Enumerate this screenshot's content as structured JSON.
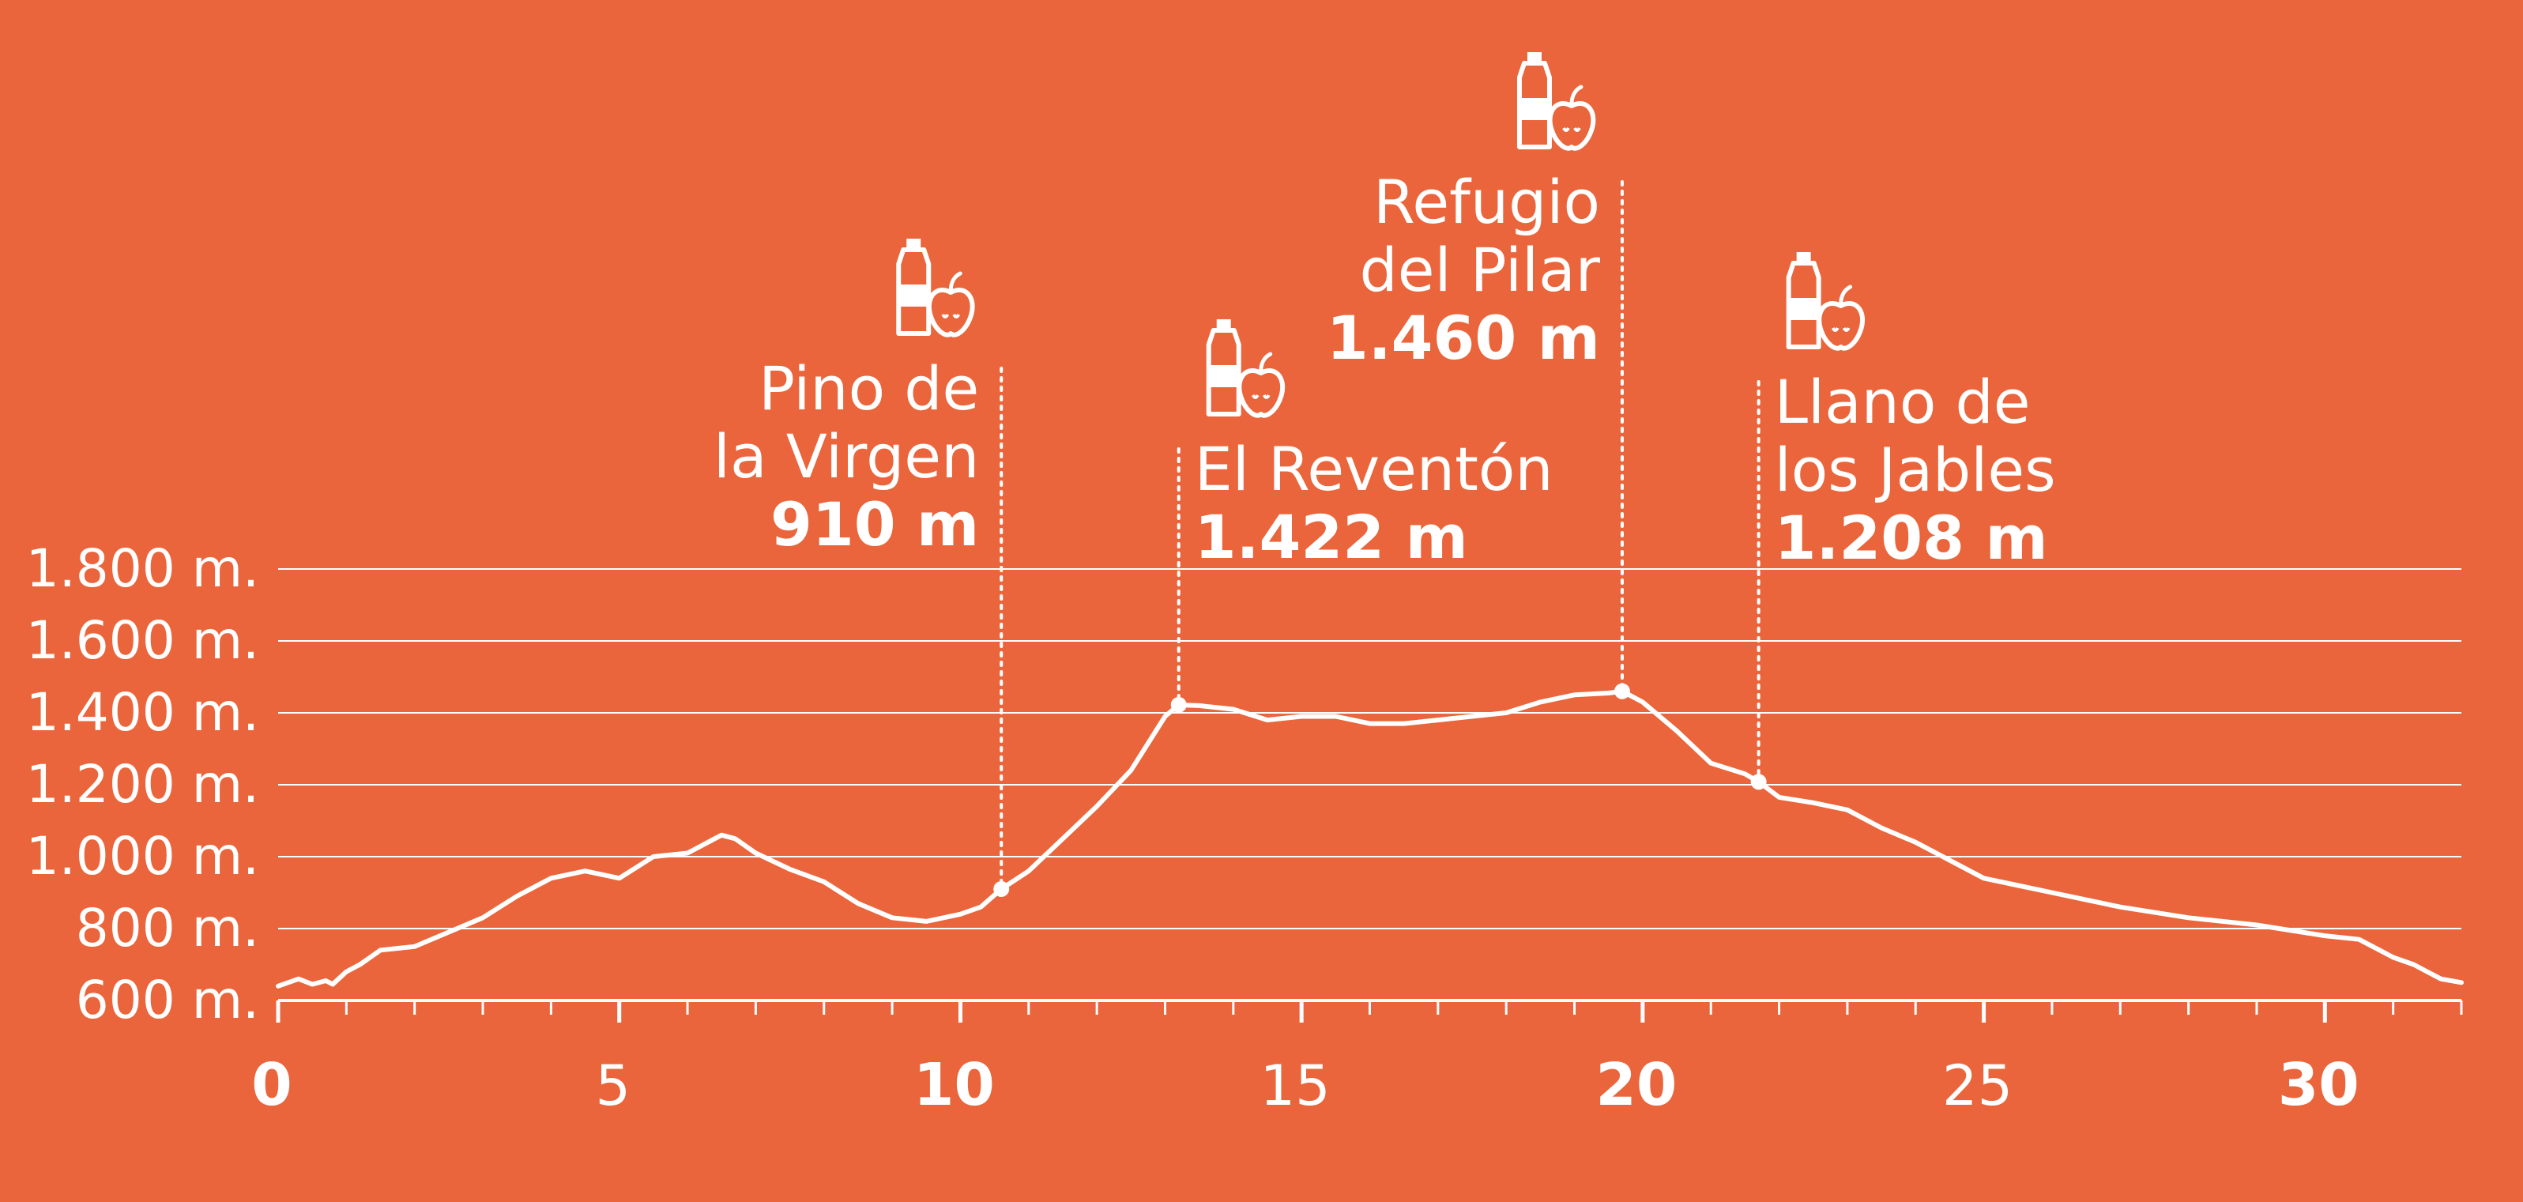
{
  "colors": {
    "background": "#EA653B",
    "foreground": "#FFFFFF"
  },
  "chart_data": {
    "type": "line",
    "title": "",
    "xlabel": "",
    "ylabel": "",
    "xlim": [
      0,
      32
    ],
    "ylim": [
      600,
      1800
    ],
    "grid": true,
    "y_ticks": [
      {
        "value": 600,
        "label": "600 m."
      },
      {
        "value": 800,
        "label": "800 m."
      },
      {
        "value": 1000,
        "label": "1.000 m."
      },
      {
        "value": 1200,
        "label": "1.200 m."
      },
      {
        "value": 1400,
        "label": "1.400 m."
      },
      {
        "value": 1600,
        "label": "1.600 m."
      },
      {
        "value": 1800,
        "label": "1.800 m."
      }
    ],
    "x_ticks": [
      {
        "value": 0,
        "label": "0",
        "major": true
      },
      {
        "value": 5,
        "label": "5",
        "major": false
      },
      {
        "value": 10,
        "label": "10",
        "major": true
      },
      {
        "value": 15,
        "label": "15",
        "major": false
      },
      {
        "value": 20,
        "label": "20",
        "major": true
      },
      {
        "value": 25,
        "label": "25",
        "major": false
      },
      {
        "value": 30,
        "label": "30",
        "major": true
      }
    ],
    "x_minor_step": 1,
    "series": [
      {
        "x": [
          0,
          0.3,
          0.5,
          0.7,
          0.8,
          1.0,
          1.2,
          1.5,
          2.0,
          2.5,
          3.0,
          3.5,
          4.0,
          4.5,
          5.0,
          5.5,
          6.0,
          6.3,
          6.5,
          6.7,
          7.0,
          7.5,
          8.0,
          8.5,
          9.0,
          9.5,
          10.0,
          10.3,
          10.6,
          11.0,
          11.5,
          12.0,
          12.5,
          13.0,
          13.2,
          13.5,
          14.0,
          14.5,
          15.0,
          15.5,
          16.0,
          16.5,
          17.0,
          17.5,
          18.0,
          18.5,
          19.0,
          19.5,
          19.7,
          20.0,
          20.5,
          21.0,
          21.5,
          21.7,
          22.0,
          22.5,
          23.0,
          23.5,
          24.0,
          25.0,
          26.0,
          27.0,
          28.0,
          29.0,
          30.0,
          30.5,
          31.0,
          31.3,
          31.5,
          31.7,
          32.0
        ],
        "y": [
          640,
          660,
          645,
          655,
          645,
          680,
          700,
          740,
          750,
          790,
          830,
          890,
          940,
          960,
          940,
          1000,
          1010,
          1040,
          1060,
          1050,
          1010,
          965,
          930,
          870,
          830,
          820,
          840,
          860,
          910,
          960,
          1050,
          1140,
          1240,
          1390,
          1422,
          1420,
          1410,
          1380,
          1390,
          1390,
          1370,
          1370,
          1380,
          1390,
          1400,
          1430,
          1450,
          1455,
          1460,
          1430,
          1350,
          1260,
          1230,
          1208,
          1165,
          1150,
          1130,
          1080,
          1040,
          940,
          900,
          860,
          830,
          810,
          780,
          770,
          720,
          700,
          680,
          660,
          650
        ]
      }
    ],
    "points_of_interest": [
      {
        "name_lines": [
          "Pino de",
          "la Virgen"
        ],
        "altitude": "910 m",
        "x": 10.6,
        "y": 910,
        "label_side": "left"
      },
      {
        "name_lines": [
          "El Reventón"
        ],
        "altitude": "1.422 m",
        "x": 13.2,
        "y": 1422,
        "label_side": "right"
      },
      {
        "name_lines": [
          "Refugio",
          "del Pilar"
        ],
        "altitude": "1.460 m",
        "x": 19.7,
        "y": 1460,
        "label_side": "left"
      },
      {
        "name_lines": [
          "Llano de",
          "los Jables"
        ],
        "altitude": "1.208 m",
        "x": 21.7,
        "y": 1208,
        "label_side": "right"
      }
    ],
    "poi_icon": "water-bottle-apple-icon"
  }
}
